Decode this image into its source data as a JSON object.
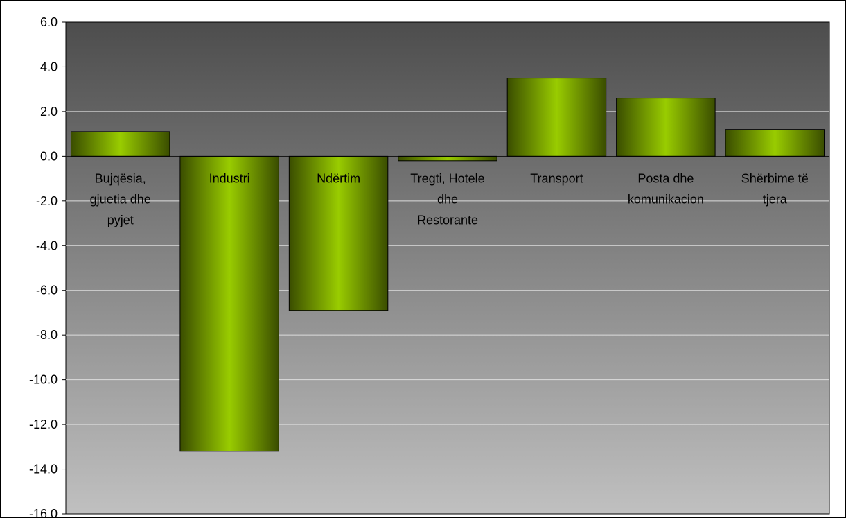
{
  "chart_data": {
    "type": "bar",
    "categories": [
      [
        "Bujqësia,",
        "gjuetia dhe",
        "pyjet"
      ],
      [
        "Industri"
      ],
      [
        "Ndërtim"
      ],
      [
        "Tregti, Hotele",
        "dhe",
        "Restorante"
      ],
      [
        "Transport"
      ],
      [
        "Posta dhe",
        "komunikacion"
      ],
      [
        "Shërbime të",
        "tjera"
      ]
    ],
    "series": [
      {
        "values": [
          1.1,
          -13.2,
          -6.9,
          -0.2,
          3.5,
          2.6,
          1.2
        ]
      }
    ],
    "ylim": [
      -16,
      6
    ],
    "yticks": [
      "6.0",
      "4.0",
      "2.0",
      "0.0",
      "-2.0",
      "-4.0",
      "-6.0",
      "-8.0",
      "-10.0",
      "-12.0",
      "-14.0",
      "-16.0"
    ],
    "ytick_values": [
      6,
      4,
      2,
      0,
      -2,
      -4,
      -6,
      -8,
      -10,
      -12,
      -14,
      -16
    ],
    "grid": true,
    "legend": "none",
    "colors": {
      "plot_bg_top": "#4d4d4d",
      "plot_bg_bottom": "#c0c0c0",
      "bar_center": "#99cc00",
      "bar_edge": "#3a4d00",
      "gridline": "#dddddd"
    }
  }
}
